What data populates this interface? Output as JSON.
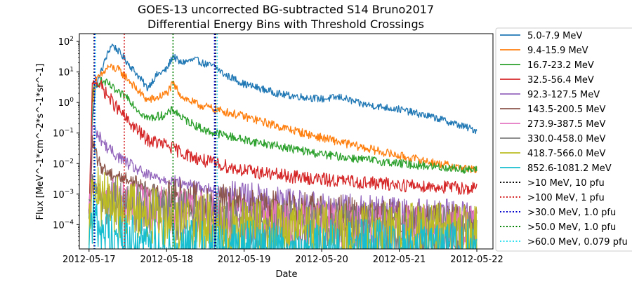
{
  "chart_data": {
    "type": "line",
    "title": "GOES-13 uncorrected BG-subtracted S14 Bruno2017",
    "subtitle": "Differential Energy Bins with Threshold Crossings",
    "xlabel": "Date",
    "ylabel": "Flux [MeV^-1*cm^-2*s^-1*sr^-1]",
    "yscale": "log",
    "xlim": [
      "2012-05-16T21:00",
      "2012-05-22T05:00"
    ],
    "ylim": [
      1.6e-05,
      180
    ],
    "grid": false,
    "legend_position": "right",
    "x_ticks": [
      "2012-05-17",
      "2012-05-18",
      "2012-05-19",
      "2012-05-20",
      "2012-05-21",
      "2012-05-22"
    ],
    "y_ticks": [
      {
        "value": 0.0001,
        "base": "10",
        "exp": "−4"
      },
      {
        "value": 0.001,
        "base": "10",
        "exp": "−3"
      },
      {
        "value": 0.01,
        "base": "10",
        "exp": "−2"
      },
      {
        "value": 0.1,
        "base": "10",
        "exp": "−1"
      },
      {
        "value": 1,
        "base": "10",
        "exp": "0"
      },
      {
        "value": 10,
        "base": "10",
        "exp": "1"
      },
      {
        "value": 100,
        "base": "10",
        "exp": "2"
      }
    ],
    "series": [
      {
        "name": "5.0-7.9 MeV",
        "color": "#1f77b4",
        "noise": 0.12,
        "points": [
          [
            "2012-05-17T00:00",
            0.0002
          ],
          [
            "2012-05-17T01:00",
            0.3
          ],
          [
            "2012-05-17T02:00",
            3
          ],
          [
            "2012-05-17T03:00",
            6
          ],
          [
            "2012-05-17T05:00",
            25
          ],
          [
            "2012-05-17T07:00",
            80
          ],
          [
            "2012-05-17T09:00",
            50
          ],
          [
            "2012-05-17T12:00",
            20
          ],
          [
            "2012-05-17T15:00",
            8
          ],
          [
            "2012-05-17T18:00",
            3
          ],
          [
            "2012-05-17T21:00",
            8
          ],
          [
            "2012-05-18T00:00",
            12
          ],
          [
            "2012-05-18T02:00",
            35
          ],
          [
            "2012-05-18T04:00",
            20
          ],
          [
            "2012-05-18T06:00",
            22
          ],
          [
            "2012-05-18T09:00",
            25
          ],
          [
            "2012-05-18T12:00",
            18
          ],
          [
            "2012-05-18T15:00",
            15
          ],
          [
            "2012-05-18T18:00",
            8
          ],
          [
            "2012-05-18T21:00",
            6
          ],
          [
            "2012-05-19T00:00",
            4
          ],
          [
            "2012-05-19T12:00",
            1.8
          ],
          [
            "2012-05-20T00:00",
            1.3
          ],
          [
            "2012-05-20T06:00",
            1.5
          ],
          [
            "2012-05-20T12:00",
            0.9
          ],
          [
            "2012-05-21T00:00",
            0.6
          ],
          [
            "2012-05-21T12:00",
            0.3
          ],
          [
            "2012-05-22T00:00",
            0.12
          ]
        ]
      },
      {
        "name": "9.4-15.9 MeV",
        "color": "#ff7f0e",
        "noise": 0.14,
        "points": [
          [
            "2012-05-17T00:00",
            0.0001
          ],
          [
            "2012-05-17T01:00",
            1
          ],
          [
            "2012-05-17T02:00",
            5
          ],
          [
            "2012-05-17T04:00",
            8
          ],
          [
            "2012-05-17T06:00",
            15
          ],
          [
            "2012-05-17T09:00",
            12
          ],
          [
            "2012-05-17T12:00",
            6
          ],
          [
            "2012-05-17T15:00",
            2.5
          ],
          [
            "2012-05-17T18:00",
            1.2
          ],
          [
            "2012-05-17T21:00",
            1.4
          ],
          [
            "2012-05-18T00:00",
            2
          ],
          [
            "2012-05-18T02:00",
            4
          ],
          [
            "2012-05-18T05:00",
            1.5
          ],
          [
            "2012-05-18T09:00",
            0.9
          ],
          [
            "2012-05-18T15:00",
            0.6
          ],
          [
            "2012-05-19T00:00",
            0.35
          ],
          [
            "2012-05-19T12:00",
            0.15
          ],
          [
            "2012-05-20T00:00",
            0.07
          ],
          [
            "2012-05-20T12:00",
            0.035
          ],
          [
            "2012-05-21T00:00",
            0.018
          ],
          [
            "2012-05-21T12:00",
            0.01
          ],
          [
            "2012-05-22T00:00",
            0.006
          ]
        ]
      },
      {
        "name": "16.7-23.2 MeV",
        "color": "#2ca02c",
        "noise": 0.14,
        "points": [
          [
            "2012-05-17T00:00",
            0.0001
          ],
          [
            "2012-05-17T01:00",
            1.5
          ],
          [
            "2012-05-17T02:00",
            4
          ],
          [
            "2012-05-17T04:00",
            5
          ],
          [
            "2012-05-17T06:00",
            4
          ],
          [
            "2012-05-17T09:00",
            2
          ],
          [
            "2012-05-17T12:00",
            1.5
          ],
          [
            "2012-05-17T15:00",
            0.6
          ],
          [
            "2012-05-17T18:00",
            0.3
          ],
          [
            "2012-05-18T00:00",
            0.4
          ],
          [
            "2012-05-18T02:00",
            0.6
          ],
          [
            "2012-05-18T05:00",
            0.3
          ],
          [
            "2012-05-18T12:00",
            0.12
          ],
          [
            "2012-05-19T00:00",
            0.06
          ],
          [
            "2012-05-19T12:00",
            0.035
          ],
          [
            "2012-05-20T00:00",
            0.02
          ],
          [
            "2012-05-21T00:00",
            0.01
          ],
          [
            "2012-05-22T00:00",
            0.006
          ]
        ]
      },
      {
        "name": "32.5-56.4 MeV",
        "color": "#d62728",
        "noise": 0.22,
        "points": [
          [
            "2012-05-17T00:00",
            0.0001
          ],
          [
            "2012-05-17T01:00",
            3
          ],
          [
            "2012-05-17T02:00",
            6
          ],
          [
            "2012-05-17T04:00",
            3
          ],
          [
            "2012-05-17T08:00",
            0.8
          ],
          [
            "2012-05-17T12:00",
            0.25
          ],
          [
            "2012-05-17T18:00",
            0.06
          ],
          [
            "2012-05-18T00:00",
            0.04
          ],
          [
            "2012-05-18T06:00",
            0.02
          ],
          [
            "2012-05-18T12:00",
            0.012
          ],
          [
            "2012-05-19T00:00",
            0.006
          ],
          [
            "2012-05-19T12:00",
            0.004
          ],
          [
            "2012-05-20T00:00",
            0.003
          ],
          [
            "2012-05-21T00:00",
            0.002
          ],
          [
            "2012-05-22T00:00",
            0.0015
          ]
        ]
      },
      {
        "name": "92.3-127.5 MeV",
        "color": "#9467bd",
        "noise": 0.2,
        "points": [
          [
            "2012-05-17T00:00",
            0.0001
          ],
          [
            "2012-05-17T01:00",
            0.18
          ],
          [
            "2012-05-17T03:00",
            0.08
          ],
          [
            "2012-05-17T06:00",
            0.03
          ],
          [
            "2012-05-17T12:00",
            0.01
          ],
          [
            "2012-05-17T18:00",
            0.004
          ],
          [
            "2012-05-18T00:00",
            0.003
          ],
          [
            "2012-05-18T12:00",
            0.0015
          ],
          [
            "2012-05-19T00:00",
            0.0008
          ],
          [
            "2012-05-20T00:00",
            0.0004
          ],
          [
            "2012-05-21T00:00",
            0.00025
          ],
          [
            "2012-05-22T00:00",
            0.0002
          ]
        ]
      },
      {
        "name": "143.5-200.5 MeV",
        "color": "#8c564b",
        "noise": 0.25,
        "points": [
          [
            "2012-05-17T00:00",
            0.0001
          ],
          [
            "2012-05-17T01:00",
            0.05
          ],
          [
            "2012-05-17T03:00",
            0.01
          ],
          [
            "2012-05-17T06:00",
            0.005
          ],
          [
            "2012-05-17T12:00",
            0.003
          ],
          [
            "2012-05-17T18:00",
            0.0015
          ],
          [
            "2012-05-18T00:00",
            0.001
          ],
          [
            "2012-05-18T12:00",
            0.0006
          ],
          [
            "2012-05-19T00:00",
            0.0004
          ],
          [
            "2012-05-20T00:00",
            0.00025
          ],
          [
            "2012-05-21T00:00",
            0.00015
          ],
          [
            "2012-05-22T00:00",
            0.0001
          ]
        ]
      },
      {
        "name": "273.9-387.5 MeV",
        "color": "#e377c2",
        "noise": 0.3,
        "points": [
          [
            "2012-05-17T00:00",
            0.0001
          ],
          [
            "2012-05-17T01:00",
            0.002
          ],
          [
            "2012-05-17T03:00",
            0.0012
          ],
          [
            "2012-05-17T06:00",
            0.0008
          ],
          [
            "2012-05-17T12:00",
            0.0005
          ],
          [
            "2012-05-18T00:00",
            0.0003
          ],
          [
            "2012-05-18T12:00",
            0.0002
          ],
          [
            "2012-05-19T00:00",
            0.00015
          ],
          [
            "2012-05-20T00:00",
            0.0001
          ],
          [
            "2012-05-22T00:00",
            7e-05
          ]
        ]
      },
      {
        "name": "330.0-458.0 MeV",
        "color": "#7f7f7f",
        "noise": 0.35,
        "points": [
          [
            "2012-05-17T00:00",
            0.0001
          ],
          [
            "2012-05-17T01:00",
            0.002
          ],
          [
            "2012-05-17T04:00",
            0.0008
          ],
          [
            "2012-05-17T12:00",
            0.0004
          ],
          [
            "2012-05-18T00:00",
            0.00025
          ],
          [
            "2012-05-18T12:00",
            0.00015
          ],
          [
            "2012-05-19T00:00",
            0.0001
          ],
          [
            "2012-05-20T00:00",
            8e-05
          ],
          [
            "2012-05-22T00:00",
            6e-05
          ]
        ]
      },
      {
        "name": "418.7-566.0 MeV",
        "color": "#bcbd22",
        "noise": 0.4,
        "points": [
          [
            "2012-05-17T00:00",
            0.0002
          ],
          [
            "2012-05-17T01:00",
            0.002
          ],
          [
            "2012-05-17T04:00",
            0.0006
          ],
          [
            "2012-05-17T12:00",
            0.0003
          ],
          [
            "2012-05-18T00:00",
            0.00015
          ],
          [
            "2012-05-19T00:00",
            8e-05
          ],
          [
            "2012-05-20T00:00",
            6e-05
          ],
          [
            "2012-05-22T00:00",
            5e-05
          ]
        ]
      },
      {
        "name": "852.6-1081.2 MeV",
        "color": "#17becf",
        "noise": 0.35,
        "points": [
          [
            "2012-05-17T00:00",
            0.0001
          ],
          [
            "2012-05-17T01:00",
            0.00015
          ],
          [
            "2012-05-17T06:00",
            5e-05
          ],
          [
            "2012-05-17T12:00",
            3e-05
          ],
          [
            "2012-05-18T00:00",
            2e-05
          ],
          [
            "2012-05-22T00:00",
            2e-05
          ]
        ]
      }
    ],
    "thresholds": [
      {
        "name": ">10 MeV, 10 pfu",
        "color": "#000000",
        "x": [
          "2012-05-17T01:35",
          "2012-05-18T15:10"
        ]
      },
      {
        "name": ">100 MeV, 1 pfu",
        "color": "#d62728",
        "x": [
          "2012-05-17T10:55"
        ]
      },
      {
        "name": ">30.0 MeV, 1.0 pfu",
        "color": "#0000cc",
        "x": [
          "2012-05-17T01:45",
          "2012-05-18T14:50"
        ]
      },
      {
        "name": ">50.0 MeV, 1.0 pfu",
        "color": "#008000",
        "x": [
          "2012-05-18T02:00"
        ]
      },
      {
        "name": ">60.0 MeV, 0.079 pfu",
        "color": "#33e0f0",
        "x": [
          "2012-05-17T02:00",
          "2012-05-18T15:40"
        ]
      }
    ]
  }
}
